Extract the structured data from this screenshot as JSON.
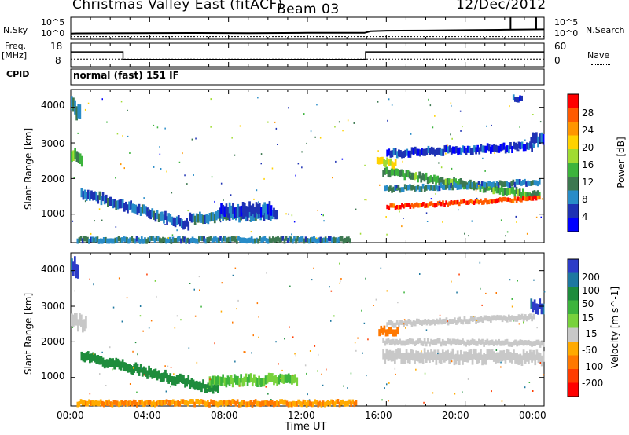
{
  "header": {
    "title": "Christmas Valley East (fitACF)",
    "beam": "Beam 03",
    "date": "12/Dec/2012"
  },
  "param_panels": {
    "nsky_label": "N.Sky",
    "nsky_ticks": [
      "10^5",
      "10^0"
    ],
    "nsearch_label": "N.Search",
    "nsearch_ticks": [
      "10^5",
      "10^0"
    ],
    "freq_label_1": "Freq.",
    "freq_label_2": "[MHz]",
    "freq_ticks": [
      "18",
      "8"
    ],
    "nave_label": "Nave",
    "nave_ticks": [
      "60",
      "0"
    ],
    "cpid_label": "CPID",
    "cpid_value": "normal (fast) 151 IF"
  },
  "x_axis": {
    "label": "Time UT",
    "ticks": [
      "00:00",
      "04:00",
      "08:00",
      "12:00",
      "16:00",
      "20:00",
      "00:00"
    ]
  },
  "y_axis": {
    "label": "Slant Range [km]",
    "ticks": [
      "4000",
      "3000",
      "2000",
      "1000"
    ]
  },
  "power_scale": {
    "label": "Power [dB]",
    "ticks": [
      "28",
      "24",
      "20",
      "16",
      "12",
      "8",
      "4"
    ],
    "colors": [
      "#ff0000",
      "#ff5a00",
      "#ff9600",
      "#ffd200",
      "#a0dc32",
      "#3cb43c",
      "#3c7850",
      "#288cc8",
      "#1e32b4",
      "#0000ff"
    ]
  },
  "velocity_scale": {
    "label": "Velocity [m s^-1]",
    "ticks": [
      "200",
      "100",
      "50",
      "15",
      "-15",
      "-50",
      "-100",
      "-200"
    ],
    "colors": [
      "#2d3cc8",
      "#1e78a0",
      "#1e8c3c",
      "#3cb43c",
      "#78d23c",
      "#c8c8c8",
      "#ffaa00",
      "#ff7800",
      "#ff3c00",
      "#ff0000"
    ]
  },
  "chart_data": [
    {
      "type": "line",
      "title": "N.Sky / N.Search",
      "x_range_hours": [
        0,
        24
      ],
      "series": [
        {
          "name": "N.Sky",
          "x": [
            0,
            0.3,
            3,
            6,
            9,
            12,
            14.9,
            15.2,
            16,
            18,
            20,
            22,
            24
          ],
          "y": [
            1.1,
            1.15,
            1.2,
            1.25,
            1.2,
            1.3,
            1.3,
            1.7,
            1.85,
            1.9,
            2.0,
            2.1,
            2.2
          ]
        },
        {
          "name": "N.Search",
          "x": [
            0,
            3,
            6,
            9,
            12,
            15,
            18,
            21,
            24
          ],
          "y": [
            0.3,
            0.3,
            0.3,
            0.3,
            0.3,
            0.3,
            0.3,
            0.3,
            0.3
          ]
        }
      ]
    },
    {
      "type": "line",
      "title": "Freq / Nave",
      "x_range_hours": [
        0,
        24
      ],
      "series": [
        {
          "name": "Freq",
          "x": [
            0,
            2.65,
            2.65,
            14.95,
            14.95,
            24
          ],
          "y": [
            14.5,
            14.5,
            10.8,
            10.8,
            14.5,
            14.5
          ]
        },
        {
          "name": "Nave",
          "x": [
            0,
            24
          ],
          "y": [
            18,
            18
          ]
        }
      ]
    },
    {
      "type": "heatmap",
      "title": "Power [dB]",
      "x_range_hours": [
        0,
        24
      ],
      "y_range_km": [
        200,
        4500
      ],
      "features": [
        {
          "t_start": 0.5,
          "t_end": 6.0,
          "r_start": 1600,
          "r_end": 700,
          "width_km": 250,
          "value": 8
        },
        {
          "t_start": 6.0,
          "t_end": 10.5,
          "r_start": 900,
          "r_end": 1000,
          "width_km": 250,
          "value": 9
        },
        {
          "t_start": 7.5,
          "t_end": 10.2,
          "r_start": 1100,
          "r_end": 1150,
          "width_km": 300,
          "value": 6
        },
        {
          "t_start": 0.0,
          "t_end": 0.6,
          "r_start": 2700,
          "r_end": 2500,
          "width_km": 300,
          "value": 15
        },
        {
          "t_start": 0.0,
          "t_end": 0.5,
          "r_start": 4100,
          "r_end": 3800,
          "width_km": 400,
          "value": 12
        },
        {
          "t_start": 0.3,
          "t_end": 14.2,
          "r_start": 280,
          "r_end": 280,
          "width_km": 150,
          "value": 10
        },
        {
          "t_start": 15.8,
          "t_end": 23.8,
          "r_start": 2200,
          "r_end": 1500,
          "width_km": 200,
          "value": 14
        },
        {
          "t_start": 16.0,
          "t_end": 23.8,
          "r_start": 1200,
          "r_end": 1450,
          "width_km": 120,
          "value": 28
        },
        {
          "t_start": 15.9,
          "t_end": 23.8,
          "r_start": 1700,
          "r_end": 1900,
          "width_km": 150,
          "value": 10
        },
        {
          "t_start": 16.0,
          "t_end": 23.5,
          "r_start": 2700,
          "r_end": 2900,
          "width_km": 200,
          "value": 6
        },
        {
          "t_start": 15.5,
          "t_end": 16.5,
          "r_start": 2500,
          "r_end": 2400,
          "width_km": 200,
          "value": 20
        },
        {
          "t_start": 23.3,
          "t_end": 24.0,
          "r_start": 3100,
          "r_end": 3100,
          "width_km": 300,
          "value": 6
        },
        {
          "t_start": 22.4,
          "t_end": 22.9,
          "r_start": 4250,
          "r_end": 4250,
          "width_km": 150,
          "value": 5
        }
      ]
    },
    {
      "type": "heatmap",
      "title": "Velocity [m s^-1]",
      "x_range_hours": [
        0,
        24
      ],
      "y_range_km": [
        200,
        4500
      ],
      "features": [
        {
          "t_start": 0.5,
          "t_end": 7.5,
          "r_start": 1600,
          "r_end": 650,
          "width_km": 250,
          "value": 60
        },
        {
          "t_start": 7.0,
          "t_end": 11.5,
          "r_start": 900,
          "r_end": 950,
          "width_km": 250,
          "value": 30
        },
        {
          "t_start": 0.3,
          "t_end": 14.5,
          "r_start": 280,
          "r_end": 280,
          "width_km": 150,
          "value": -50
        },
        {
          "t_start": 0.0,
          "t_end": 0.8,
          "r_start": 2600,
          "r_end": 2500,
          "width_km": 350,
          "value": 0
        },
        {
          "t_start": 15.8,
          "t_end": 24.0,
          "r_start": 1600,
          "r_end": 1550,
          "width_km": 300,
          "value": 0
        },
        {
          "t_start": 15.8,
          "t_end": 24.0,
          "r_start": 2000,
          "r_end": 1950,
          "width_km": 150,
          "value": 0
        },
        {
          "t_start": 16.0,
          "t_end": 23.5,
          "r_start": 2500,
          "r_end": 2700,
          "width_km": 150,
          "value": 0
        },
        {
          "t_start": 15.6,
          "t_end": 16.6,
          "r_start": 2300,
          "r_end": 2300,
          "width_km": 200,
          "value": -60
        },
        {
          "t_start": 23.3,
          "t_end": 24.0,
          "r_start": 3000,
          "r_end": 3000,
          "width_km": 300,
          "value": 150
        },
        {
          "t_start": 0.0,
          "t_end": 0.4,
          "r_start": 4200,
          "r_end": 4000,
          "width_km": 400,
          "value": 150
        }
      ]
    }
  ]
}
